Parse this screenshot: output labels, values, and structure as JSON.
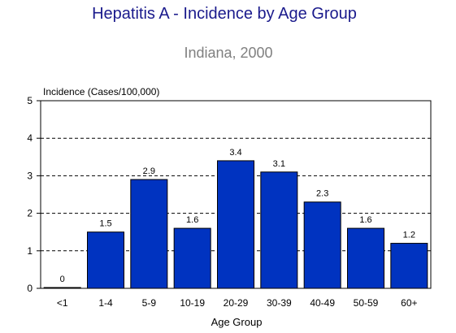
{
  "chart_data": {
    "type": "bar",
    "title": "Hepatitis A - Incidence by Age Group",
    "subtitle": "Indiana, 2000",
    "ylabel": "Incidence (Cases/100,000)",
    "xlabel": "Age Group",
    "categories": [
      "<1",
      "1-4",
      "5-9",
      "10-19",
      "20-29",
      "30-39",
      "40-49",
      "50-59",
      "60+"
    ],
    "values": [
      0,
      1.5,
      2.9,
      1.6,
      3.4,
      3.1,
      2.3,
      1.6,
      1.2
    ],
    "data_labels": [
      "0",
      "1.5",
      "2.9",
      "1.6",
      "3.4",
      "3.1",
      "2.3",
      "1.6",
      "1.2"
    ],
    "ylim": [
      0,
      5
    ],
    "yticks": [
      "0",
      "1",
      "2",
      "3",
      "4",
      "5"
    ],
    "grid": true,
    "grid_style": "dashed",
    "colors": {
      "title": "#1a1a8c",
      "subtitle": "#808080",
      "bar": "#0033c0",
      "bar_stroke": "#000000",
      "axis": "#000000",
      "grid": "#000000",
      "text": "#000000"
    }
  }
}
